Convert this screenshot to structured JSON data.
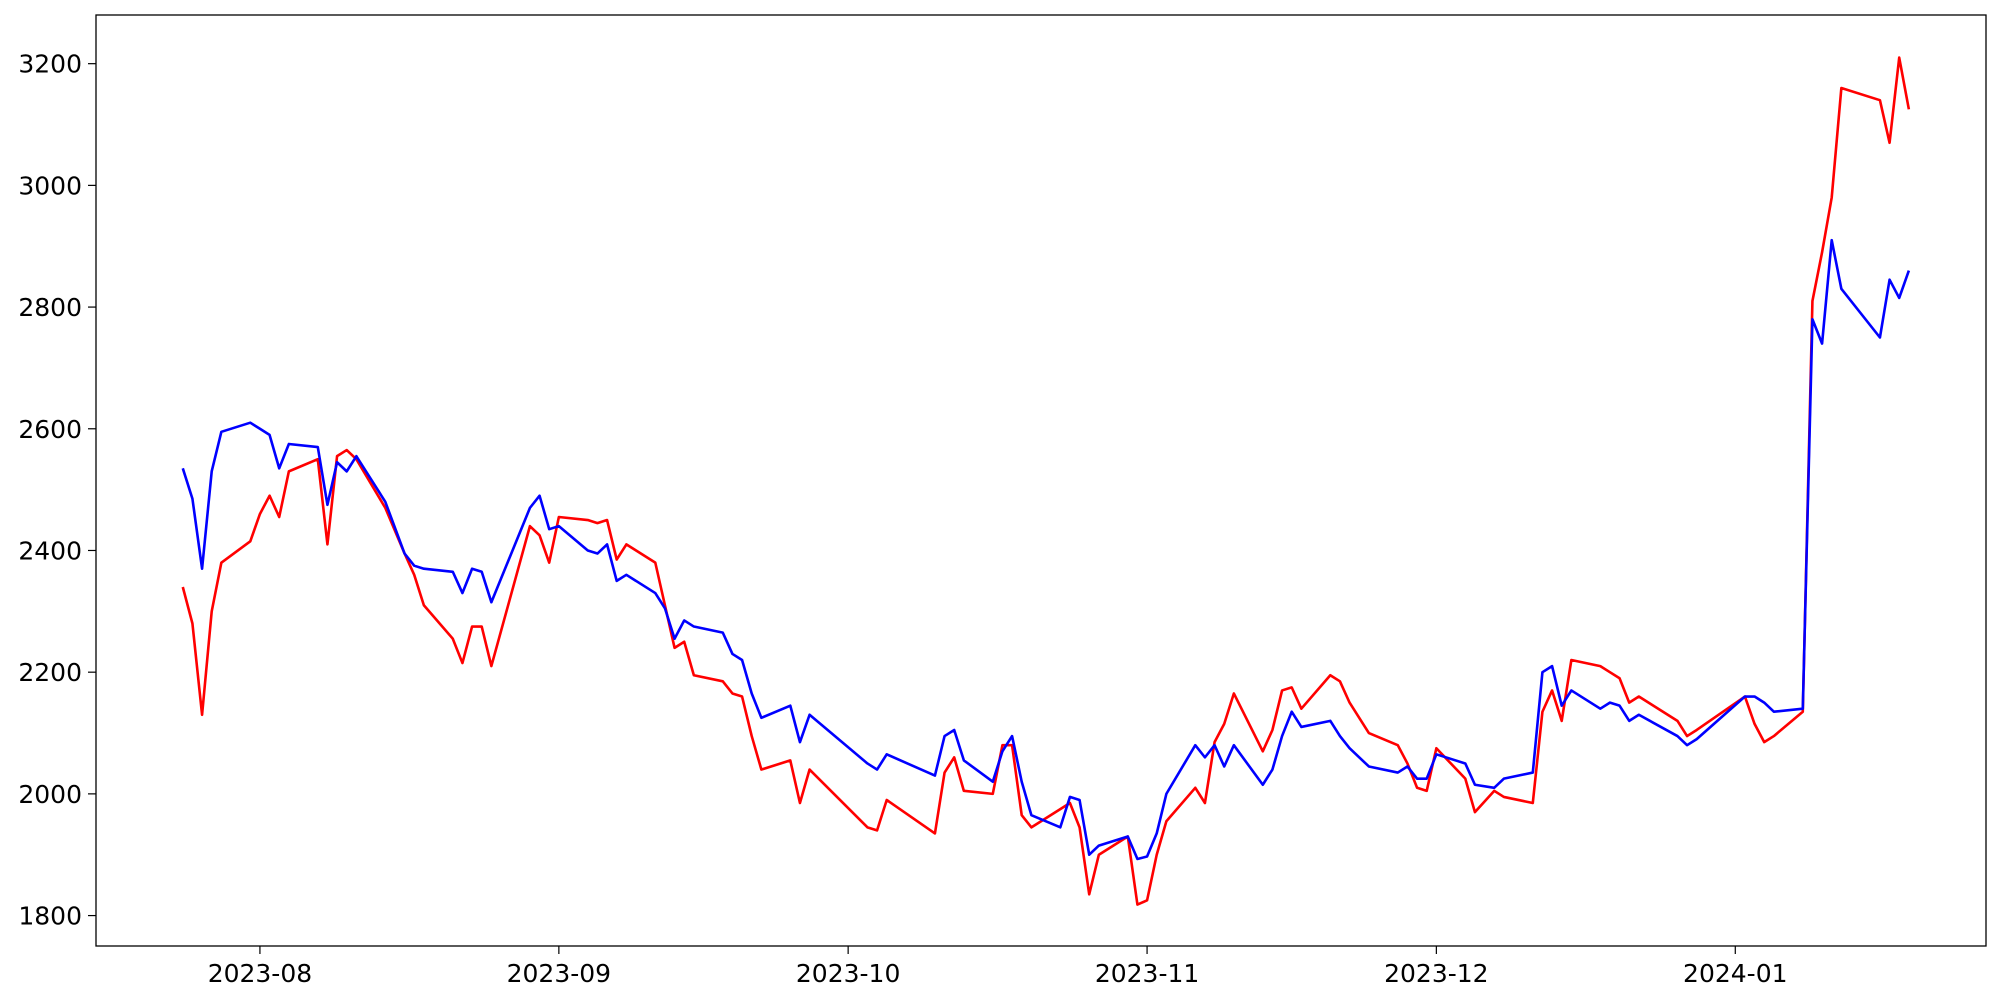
{
  "chart_data": {
    "type": "line",
    "x": [
      "2023-07-24",
      "2023-07-25",
      "2023-07-26",
      "2023-07-27",
      "2023-07-28",
      "2023-07-31",
      "2023-08-01",
      "2023-08-02",
      "2023-08-03",
      "2023-08-04",
      "2023-08-07",
      "2023-08-08",
      "2023-08-09",
      "2023-08-10",
      "2023-08-11",
      "2023-08-14",
      "2023-08-16",
      "2023-08-17",
      "2023-08-18",
      "2023-08-21",
      "2023-08-22",
      "2023-08-23",
      "2023-08-24",
      "2023-08-25",
      "2023-08-29",
      "2023-08-30",
      "2023-08-31",
      "2023-09-01",
      "2023-09-04",
      "2023-09-05",
      "2023-09-06",
      "2023-09-07",
      "2023-09-08",
      "2023-09-11",
      "2023-09-12",
      "2023-09-13",
      "2023-09-14",
      "2023-09-15",
      "2023-09-18",
      "2023-09-19",
      "2023-09-20",
      "2023-09-21",
      "2023-09-22",
      "2023-09-25",
      "2023-09-26",
      "2023-09-27",
      "2023-10-03",
      "2023-10-04",
      "2023-10-05",
      "2023-10-10",
      "2023-10-11",
      "2023-10-12",
      "2023-10-13",
      "2023-10-16",
      "2023-10-17",
      "2023-10-18",
      "2023-10-19",
      "2023-10-20",
      "2023-10-23",
      "2023-10-24",
      "2023-10-25",
      "2023-10-26",
      "2023-10-27",
      "2023-10-30",
      "2023-10-31",
      "2023-11-01",
      "2023-11-02",
      "2023-11-03",
      "2023-11-06",
      "2023-11-07",
      "2023-11-08",
      "2023-11-09",
      "2023-11-10",
      "2023-11-13",
      "2023-11-14",
      "2023-11-15",
      "2023-11-16",
      "2023-11-17",
      "2023-11-20",
      "2023-11-21",
      "2023-11-22",
      "2023-11-24",
      "2023-11-27",
      "2023-11-28",
      "2023-11-29",
      "2023-11-30",
      "2023-12-01",
      "2023-12-04",
      "2023-12-05",
      "2023-12-07",
      "2023-12-08",
      "2023-12-11",
      "2023-12-12",
      "2023-12-13",
      "2023-12-14",
      "2023-12-15",
      "2023-12-18",
      "2023-12-19",
      "2023-12-20",
      "2023-12-21",
      "2023-12-22",
      "2023-12-26",
      "2023-12-27",
      "2023-12-28",
      "2024-01-02",
      "2024-01-03",
      "2024-01-04",
      "2024-01-05",
      "2024-01-08",
      "2024-01-09",
      "2024-01-10",
      "2024-01-11",
      "2024-01-12",
      "2024-01-16",
      "2024-01-17",
      "2024-01-18",
      "2024-01-19"
    ],
    "series": [
      {
        "color": "#ff0000",
        "values": [
          2340,
          2280,
          2130,
          2300,
          2380,
          2415,
          2460,
          2490,
          2455,
          2530,
          2550,
          2410,
          2555,
          2565,
          2550,
          2470,
          2395,
          2360,
          2310,
          2255,
          2215,
          2275,
          2275,
          2210,
          2440,
          2425,
          2380,
          2455,
          2450,
          2445,
          2450,
          2385,
          2410,
          2380,
          2310,
          2240,
          2250,
          2195,
          2185,
          2165,
          2160,
          2095,
          2040,
          2055,
          1985,
          2040,
          1945,
          1940,
          1990,
          1935,
          2035,
          2060,
          2005,
          2000,
          2080,
          2080,
          1965,
          1945,
          1975,
          1985,
          1945,
          1835,
          1900,
          1930,
          1818,
          1825,
          1900,
          1955,
          2010,
          1985,
          2085,
          2115,
          2165,
          2070,
          2105,
          2170,
          2175,
          2140,
          2195,
          2185,
          2150,
          2100,
          2080,
          2050,
          2010,
          2005,
          2075,
          2025,
          1970,
          2005,
          1995,
          1985,
          2135,
          2170,
          2120,
          2220,
          2210,
          2200,
          2190,
          2150,
          2160,
          2120,
          2095,
          2105,
          2160,
          2115,
          2085,
          2095,
          2135,
          2810,
          2890,
          2980,
          3160,
          3140,
          3070,
          3210,
          3125
        ]
      },
      {
        "color": "#0000ff",
        "values": [
          2535,
          2485,
          2370,
          2530,
          2595,
          2610,
          2600,
          2590,
          2535,
          2575,
          2570,
          2475,
          2545,
          2530,
          2555,
          2480,
          2395,
          2375,
          2370,
          2365,
          2330,
          2370,
          2365,
          2315,
          2470,
          2490,
          2435,
          2440,
          2400,
          2395,
          2410,
          2350,
          2360,
          2330,
          2305,
          2255,
          2285,
          2275,
          2265,
          2230,
          2220,
          2165,
          2125,
          2145,
          2085,
          2130,
          2050,
          2040,
          2065,
          2030,
          2095,
          2105,
          2055,
          2020,
          2070,
          2095,
          2020,
          1965,
          1945,
          1995,
          1990,
          1900,
          1915,
          1930,
          1893,
          1897,
          1935,
          2000,
          2080,
          2060,
          2080,
          2045,
          2080,
          2015,
          2040,
          2095,
          2135,
          2110,
          2120,
          2095,
          2075,
          2045,
          2035,
          2045,
          2025,
          2025,
          2065,
          2050,
          2015,
          2010,
          2025,
          2035,
          2200,
          2210,
          2145,
          2170,
          2140,
          2150,
          2145,
          2120,
          2130,
          2095,
          2080,
          2090,
          2160,
          2160,
          2150,
          2135,
          2140,
          2780,
          2740,
          2910,
          2830,
          2750,
          2845,
          2815,
          2860
        ]
      }
    ],
    "xlim": [
      "2023-07-15",
      "2024-01-27"
    ],
    "xticks": [
      {
        "value": "2023-08-01",
        "label": "2023-08"
      },
      {
        "value": "2023-09-01",
        "label": "2023-09"
      },
      {
        "value": "2023-10-01",
        "label": "2023-10"
      },
      {
        "value": "2023-11-01",
        "label": "2023-11"
      },
      {
        "value": "2023-12-01",
        "label": "2023-12"
      },
      {
        "value": "2024-01-01",
        "label": "2024-01"
      }
    ],
    "ylim": [
      1750,
      3280
    ],
    "yticks": [
      1800,
      2000,
      2200,
      2400,
      2600,
      2800,
      3000,
      3200
    ],
    "grid": false
  }
}
